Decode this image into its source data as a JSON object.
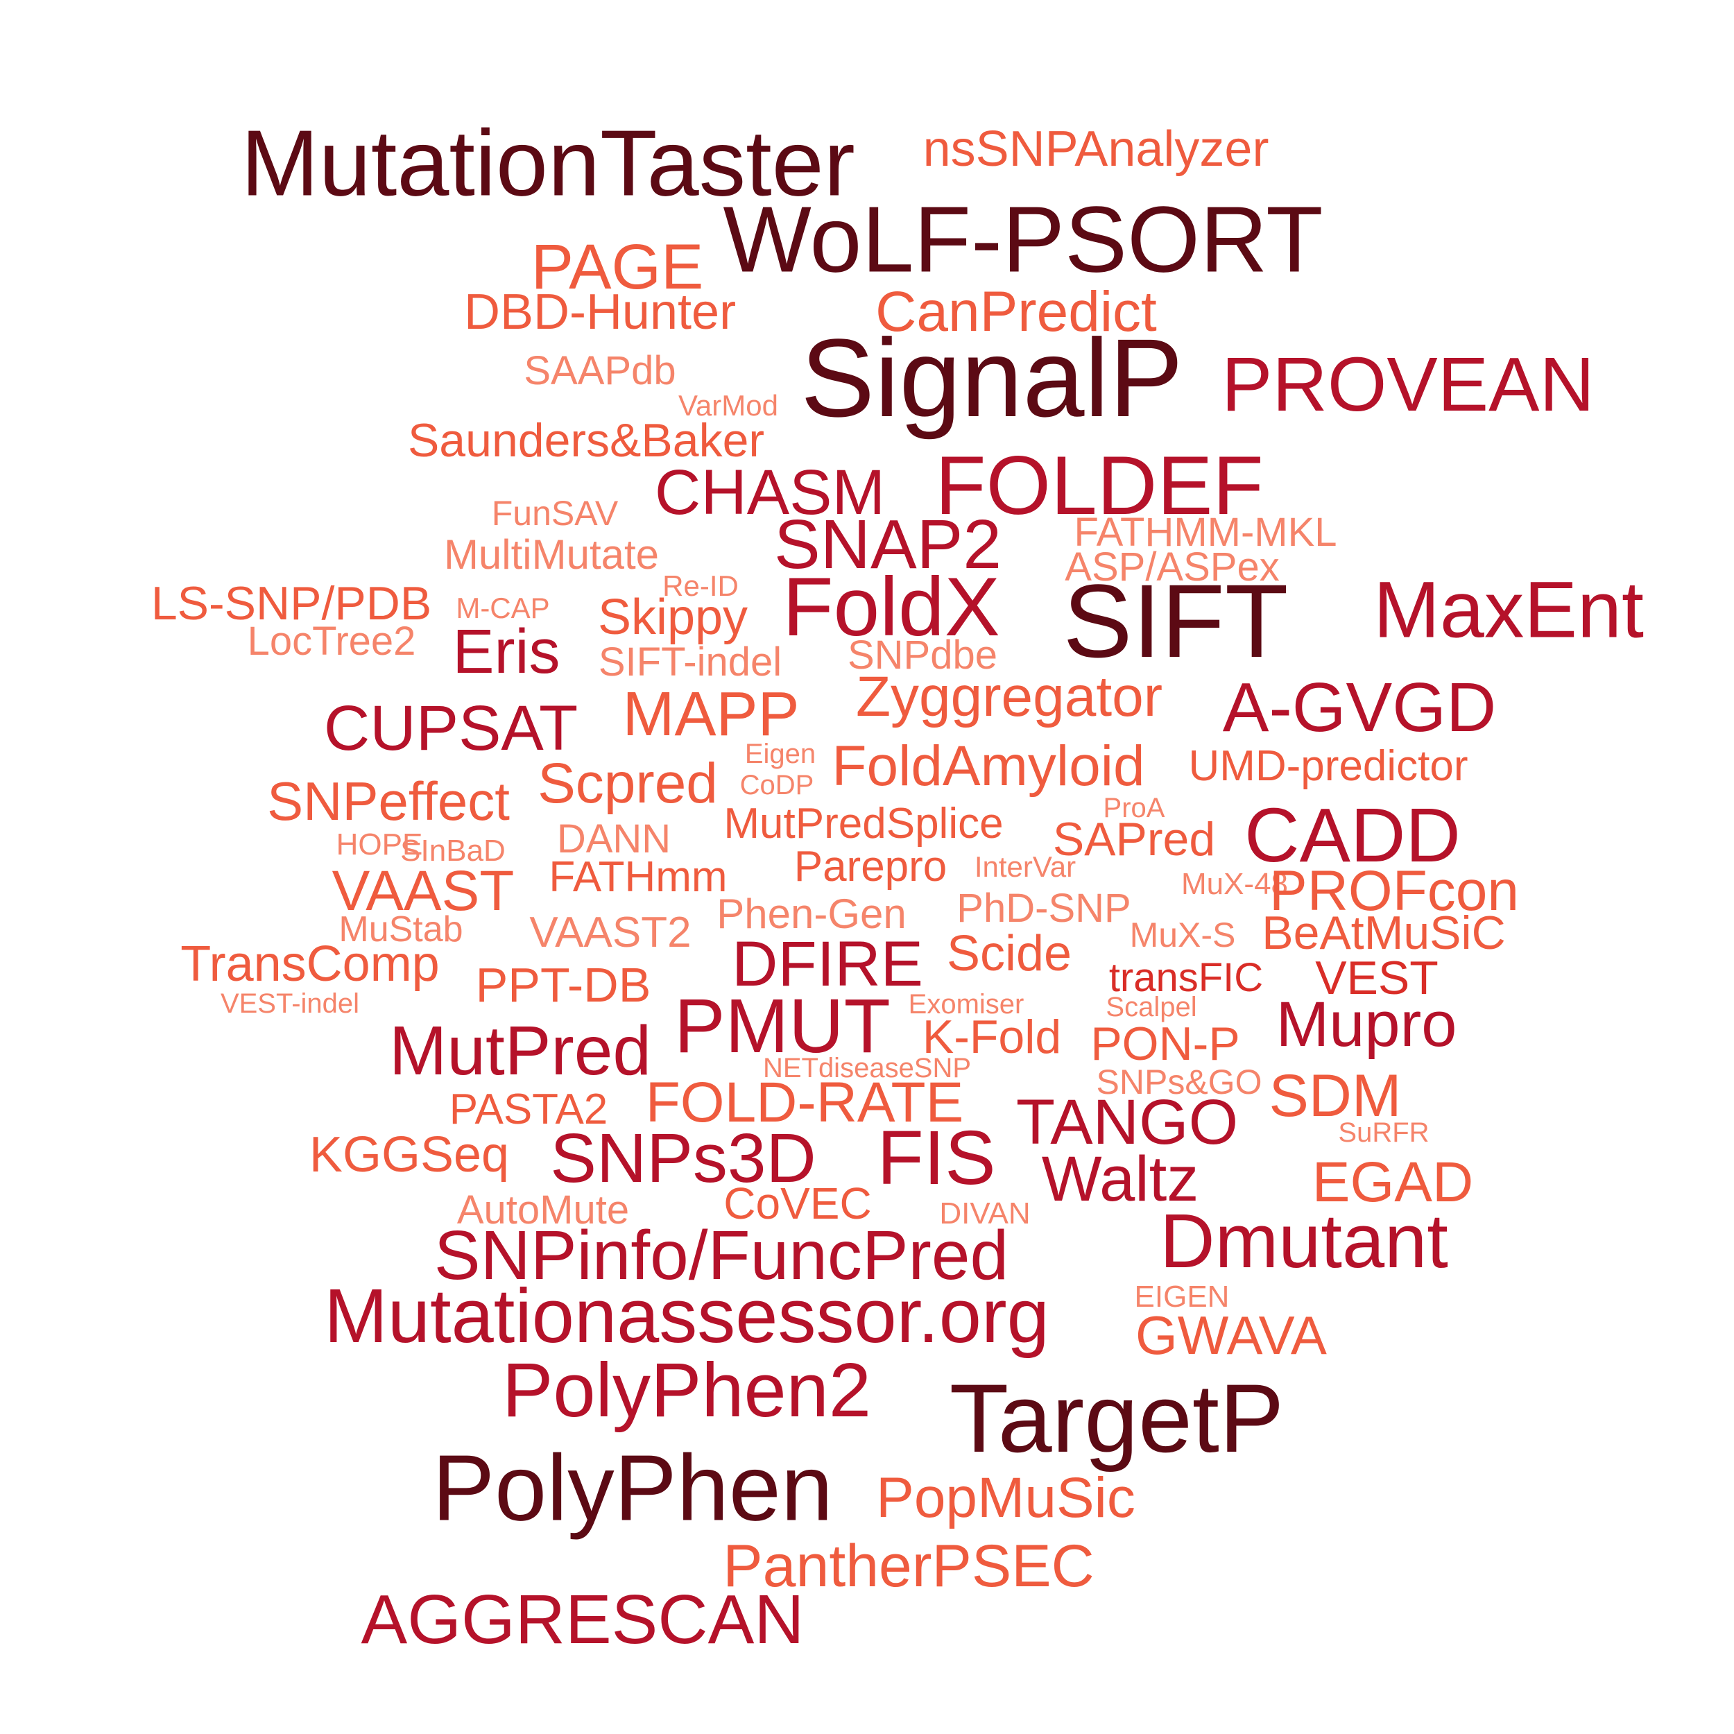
{
  "palette": {
    "tier1": "#5c0a14",
    "tier2": "#b5122a",
    "tier3": "#d92d27",
    "tier4": "#ef5b3e",
    "tier5": "#f5846a"
  },
  "words": [
    {
      "text": "MutationTaster",
      "tier": 1
    },
    {
      "text": "nsSNPAnalyzer",
      "tier": 4
    },
    {
      "text": "WoLF-PSORT",
      "tier": 1
    },
    {
      "text": "PAGE",
      "tier": 4
    },
    {
      "text": "DBD-Hunter",
      "tier": 4
    },
    {
      "text": "CanPredict",
      "tier": 4
    },
    {
      "text": "SignalP",
      "tier": 1
    },
    {
      "text": "PROVEAN",
      "tier": 2
    },
    {
      "text": "SAAPdb",
      "tier": 5
    },
    {
      "text": "VarMod",
      "tier": 5
    },
    {
      "text": "Saunders&Baker",
      "tier": 4
    },
    {
      "text": "CHASM",
      "tier": 2
    },
    {
      "text": "FOLDEF",
      "tier": 2
    },
    {
      "text": "FunSAV",
      "tier": 5
    },
    {
      "text": "SNAP2",
      "tier": 2
    },
    {
      "text": "FATHMM-MKL",
      "tier": 5
    },
    {
      "text": "MultiMutate",
      "tier": 5
    },
    {
      "text": "ASP/ASPex",
      "tier": 5
    },
    {
      "text": "Re-ID",
      "tier": 5
    },
    {
      "text": "LS-SNP/PDB",
      "tier": 4
    },
    {
      "text": "M-CAP",
      "tier": 5
    },
    {
      "text": "Skippy",
      "tier": 4
    },
    {
      "text": "FoldX",
      "tier": 2
    },
    {
      "text": "SIFT",
      "tier": 1
    },
    {
      "text": "MaxEnt",
      "tier": 2
    },
    {
      "text": "LocTree2",
      "tier": 5
    },
    {
      "text": "Eris",
      "tier": 2
    },
    {
      "text": "SIFT-indel",
      "tier": 5
    },
    {
      "text": "SNPdbe",
      "tier": 5
    },
    {
      "text": "Zyggregator",
      "tier": 4
    },
    {
      "text": "A-GVGD",
      "tier": 2
    },
    {
      "text": "CUPSAT",
      "tier": 2
    },
    {
      "text": "MAPP",
      "tier": 4
    },
    {
      "text": "Eigen",
      "tier": 5
    },
    {
      "text": "FoldAmyloid",
      "tier": 4
    },
    {
      "text": "UMD-predictor",
      "tier": 4
    },
    {
      "text": "Scpred",
      "tier": 4
    },
    {
      "text": "CoDP",
      "tier": 5
    },
    {
      "text": "SNPeffect",
      "tier": 4
    },
    {
      "text": "ProA",
      "tier": 5
    },
    {
      "text": "MutPredSplice",
      "tier": 4
    },
    {
      "text": "SAPred",
      "tier": 4
    },
    {
      "text": "CADD",
      "tier": 2
    },
    {
      "text": "HOPE",
      "tier": 5
    },
    {
      "text": "SInBaD",
      "tier": 5
    },
    {
      "text": "DANN",
      "tier": 5
    },
    {
      "text": "Parepro",
      "tier": 4
    },
    {
      "text": "InterVar",
      "tier": 5
    },
    {
      "text": "MuX-48",
      "tier": 5
    },
    {
      "text": "VAAST",
      "tier": 4
    },
    {
      "text": "FATHmm",
      "tier": 4
    },
    {
      "text": "PROFcon",
      "tier": 4
    },
    {
      "text": "PhD-SNP",
      "tier": 5
    },
    {
      "text": "MuStab",
      "tier": 5
    },
    {
      "text": "Phen-Gen",
      "tier": 5
    },
    {
      "text": "VAAST2",
      "tier": 5
    },
    {
      "text": "MuX-S",
      "tier": 5
    },
    {
      "text": "BeAtMuSiC",
      "tier": 4
    },
    {
      "text": "TransComp",
      "tier": 4
    },
    {
      "text": "DFIRE",
      "tier": 2
    },
    {
      "text": "Scide",
      "tier": 4
    },
    {
      "text": "PPT-DB",
      "tier": 4
    },
    {
      "text": "transFIC",
      "tier": 3
    },
    {
      "text": "VEST",
      "tier": 3
    },
    {
      "text": "VEST-indel",
      "tier": 5
    },
    {
      "text": "Exomiser",
      "tier": 5
    },
    {
      "text": "Scalpel",
      "tier": 5
    },
    {
      "text": "PMUT",
      "tier": 2
    },
    {
      "text": "Mupro",
      "tier": 2
    },
    {
      "text": "MutPred",
      "tier": 2
    },
    {
      "text": "K-Fold",
      "tier": 4
    },
    {
      "text": "PON-P",
      "tier": 4
    },
    {
      "text": "NETdiseaseSNP",
      "tier": 5
    },
    {
      "text": "SNPs&GO",
      "tier": 5
    },
    {
      "text": "PASTA2",
      "tier": 4
    },
    {
      "text": "FOLD-RATE",
      "tier": 4
    },
    {
      "text": "SDM",
      "tier": 4
    },
    {
      "text": "TANGO",
      "tier": 2
    },
    {
      "text": "SuRFR",
      "tier": 5
    },
    {
      "text": "KGGSeq",
      "tier": 4
    },
    {
      "text": "SNPs3D",
      "tier": 2
    },
    {
      "text": "FIS",
      "tier": 2
    },
    {
      "text": "Waltz",
      "tier": 2
    },
    {
      "text": "EGAD",
      "tier": 4
    },
    {
      "text": "AutoMute",
      "tier": 5
    },
    {
      "text": "CoVEC",
      "tier": 4
    },
    {
      "text": "DIVAN",
      "tier": 5
    },
    {
      "text": "Dmutant",
      "tier": 2
    },
    {
      "text": "SNPinfo/FuncPred",
      "tier": 2
    },
    {
      "text": "Mutationassessor.org",
      "tier": 2
    },
    {
      "text": "EIGEN",
      "tier": 5
    },
    {
      "text": "GWAVA",
      "tier": 4
    },
    {
      "text": "PolyPhen2",
      "tier": 2
    },
    {
      "text": "TargetP",
      "tier": 1
    },
    {
      "text": "PolyPhen",
      "tier": 1
    },
    {
      "text": "PopMuSic",
      "tier": 4
    },
    {
      "text": "PantherPSEC",
      "tier": 4
    },
    {
      "text": "AGGRESCAN",
      "tier": 2
    }
  ]
}
